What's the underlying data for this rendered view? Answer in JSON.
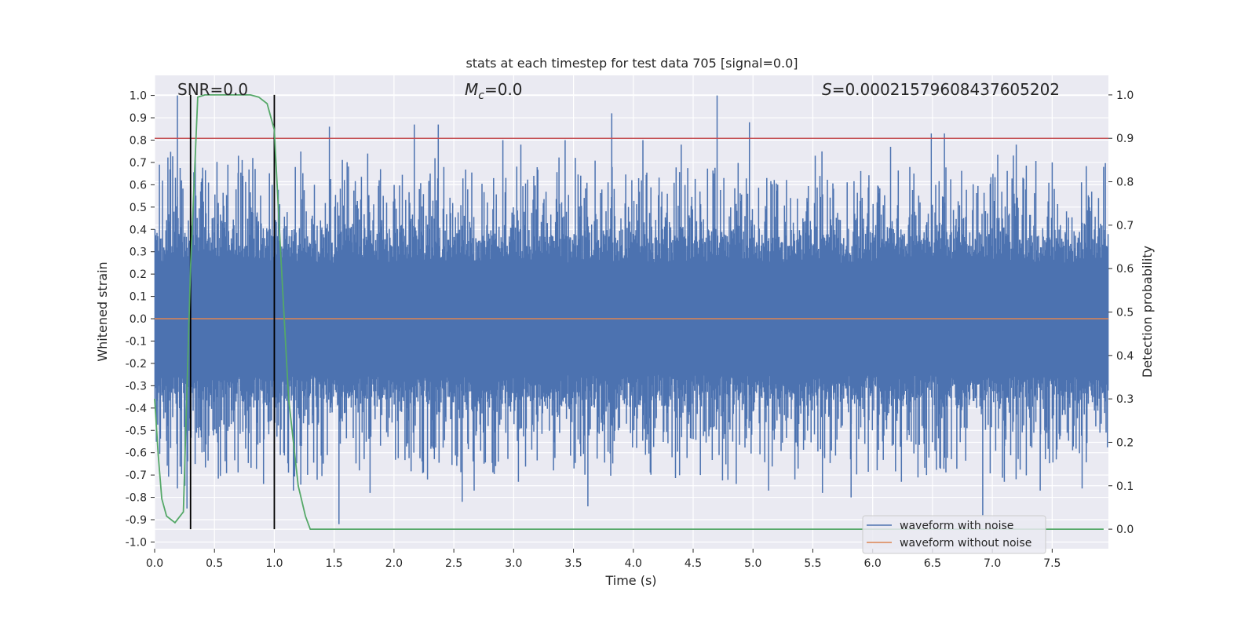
{
  "chart_data": {
    "type": "line",
    "title": "stats at each timestep for test data 705 [signal=0.0]",
    "xlabel": "Time (s)",
    "ylabel": "Whitened strain",
    "y2label": "Detection probability",
    "xlim": [
      0.0,
      7.97
    ],
    "ylim": [
      -1.03,
      1.09
    ],
    "y2lim": [
      -0.045,
      1.045
    ],
    "xticks": [
      "0.0",
      "0.5",
      "1.0",
      "1.5",
      "2.0",
      "2.5",
      "3.0",
      "3.5",
      "4.0",
      "4.5",
      "5.0",
      "5.5",
      "6.0",
      "6.5",
      "7.0",
      "7.5"
    ],
    "yticks": [
      "-1.0",
      "-0.9",
      "-0.8",
      "-0.7",
      "-0.6",
      "-0.5",
      "-0.4",
      "-0.3",
      "-0.2",
      "-0.1",
      "0.0",
      "0.1",
      "0.2",
      "0.3",
      "0.4",
      "0.5",
      "0.6",
      "0.7",
      "0.8",
      "0.9",
      "1.0"
    ],
    "y2ticks": [
      "0.0",
      "0.1",
      "0.2",
      "0.3",
      "0.4",
      "0.5",
      "0.6",
      "0.7",
      "0.8",
      "0.9",
      "1.0"
    ],
    "annotations": {
      "snr": "SNR=0.0",
      "mc_symbol": "M",
      "mc_sub": "c",
      "mc_value": "=0.0",
      "s_symbol": "S",
      "s_value": "=0.00021579608437605202"
    },
    "legend": {
      "position": "lower-right",
      "entries": [
        {
          "label": "waveform with noise",
          "color": "#4c72b0"
        },
        {
          "label": "waveform without noise",
          "color": "#dd8452"
        }
      ]
    },
    "series": [
      {
        "name": "waveform with noise",
        "color": "#4c72b0",
        "envelope_note": "dense noise, typical amplitude ~0.45 with spikes",
        "spikes_up": [
          [
            0.04,
            0.69
          ],
          [
            0.19,
            1.0
          ],
          [
            0.34,
            0.74
          ],
          [
            0.45,
            0.61
          ],
          [
            0.7,
            0.73
          ],
          [
            0.82,
            0.72
          ],
          [
            1.0,
            0.81
          ],
          [
            1.46,
            0.86
          ],
          [
            1.78,
            0.74
          ],
          [
            2.17,
            0.87
          ],
          [
            2.37,
            0.87
          ],
          [
            2.91,
            0.8
          ],
          [
            3.06,
            0.78
          ],
          [
            3.43,
            0.8
          ],
          [
            3.82,
            0.92
          ],
          [
            4.08,
            0.8
          ],
          [
            4.4,
            0.78
          ],
          [
            4.7,
            1.0
          ],
          [
            4.97,
            0.88
          ],
          [
            5.52,
            0.73
          ],
          [
            6.15,
            0.77
          ],
          [
            6.49,
            0.83
          ],
          [
            6.6,
            0.83
          ],
          [
            7.2,
            0.78
          ],
          [
            7.5,
            0.7
          ],
          [
            7.93,
            0.68
          ]
        ],
        "spikes_down": [
          [
            0.19,
            -0.76
          ],
          [
            0.27,
            -0.85
          ],
          [
            0.55,
            -0.68
          ],
          [
            0.91,
            -0.74
          ],
          [
            1.16,
            -0.77
          ],
          [
            1.54,
            -0.92
          ],
          [
            1.8,
            -0.78
          ],
          [
            2.28,
            -0.72
          ],
          [
            2.57,
            -0.82
          ],
          [
            2.67,
            -0.77
          ],
          [
            3.04,
            -0.73
          ],
          [
            3.62,
            -0.84
          ],
          [
            4.56,
            -0.7
          ],
          [
            4.86,
            -0.74
          ],
          [
            5.13,
            -0.77
          ],
          [
            5.35,
            -0.72
          ],
          [
            5.58,
            -0.78
          ],
          [
            5.82,
            -0.8
          ],
          [
            6.24,
            -0.73
          ],
          [
            6.45,
            -0.7
          ],
          [
            6.92,
            -0.88
          ],
          [
            7.1,
            -0.73
          ],
          [
            7.4,
            -0.77
          ],
          [
            7.75,
            -0.76
          ]
        ]
      },
      {
        "name": "waveform without noise",
        "color": "#dd8452",
        "x": [
          0.0,
          7.97
        ],
        "y": [
          0.0,
          0.0
        ]
      },
      {
        "name": "detection probability",
        "axis": "right",
        "color": "#55a868",
        "x": [
          0.0,
          0.03,
          0.06,
          0.1,
          0.17,
          0.24,
          0.3,
          0.36,
          0.42,
          0.5,
          0.6,
          0.7,
          0.8,
          0.87,
          0.94,
          1.0,
          1.05,
          1.12,
          1.2,
          1.26,
          1.3,
          1.4,
          2.0,
          4.0,
          6.0,
          7.93
        ],
        "y": [
          0.3,
          0.17,
          0.07,
          0.03,
          0.015,
          0.04,
          0.6,
          0.995,
          1.0,
          1.0,
          1.0,
          1.0,
          1.0,
          0.995,
          0.98,
          0.92,
          0.65,
          0.3,
          0.1,
          0.03,
          0.0,
          0.0,
          0.0,
          0.0,
          0.0,
          0.0
        ]
      }
    ],
    "hlines": [
      {
        "axis": "right",
        "value": 0.9,
        "color": "#c44e52"
      }
    ],
    "vlines": [
      {
        "x": 0.3,
        "color": "#000000"
      },
      {
        "x": 1.0,
        "color": "#000000"
      }
    ]
  }
}
